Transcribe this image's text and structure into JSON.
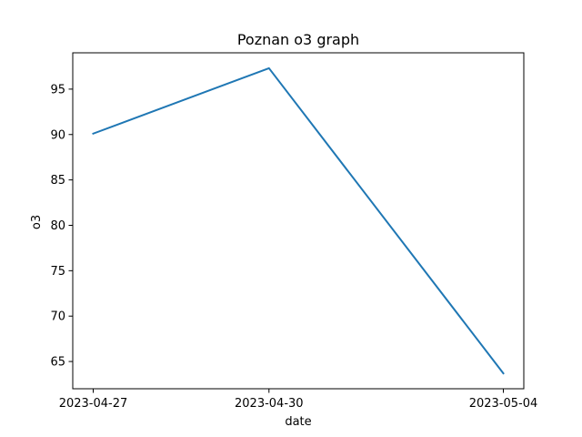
{
  "chart_data": {
    "type": "line",
    "title": "Poznan o3 graph",
    "xlabel": "date",
    "ylabel": "o3",
    "categories": [
      "2023-04-27",
      "2023-04-30",
      "2023-05-04"
    ],
    "series": [
      {
        "values": [
          90.1,
          97.3,
          63.7
        ],
        "color": "#1f77b4"
      }
    ],
    "x_ticks": [
      "2023-04-27",
      "2023-04-30",
      "2023-05-04"
    ],
    "y_ticks": [
      65,
      70,
      75,
      80,
      85,
      90,
      95
    ],
    "ylim": [
      62.0,
      99.0
    ],
    "grid": false,
    "legend": "none"
  }
}
